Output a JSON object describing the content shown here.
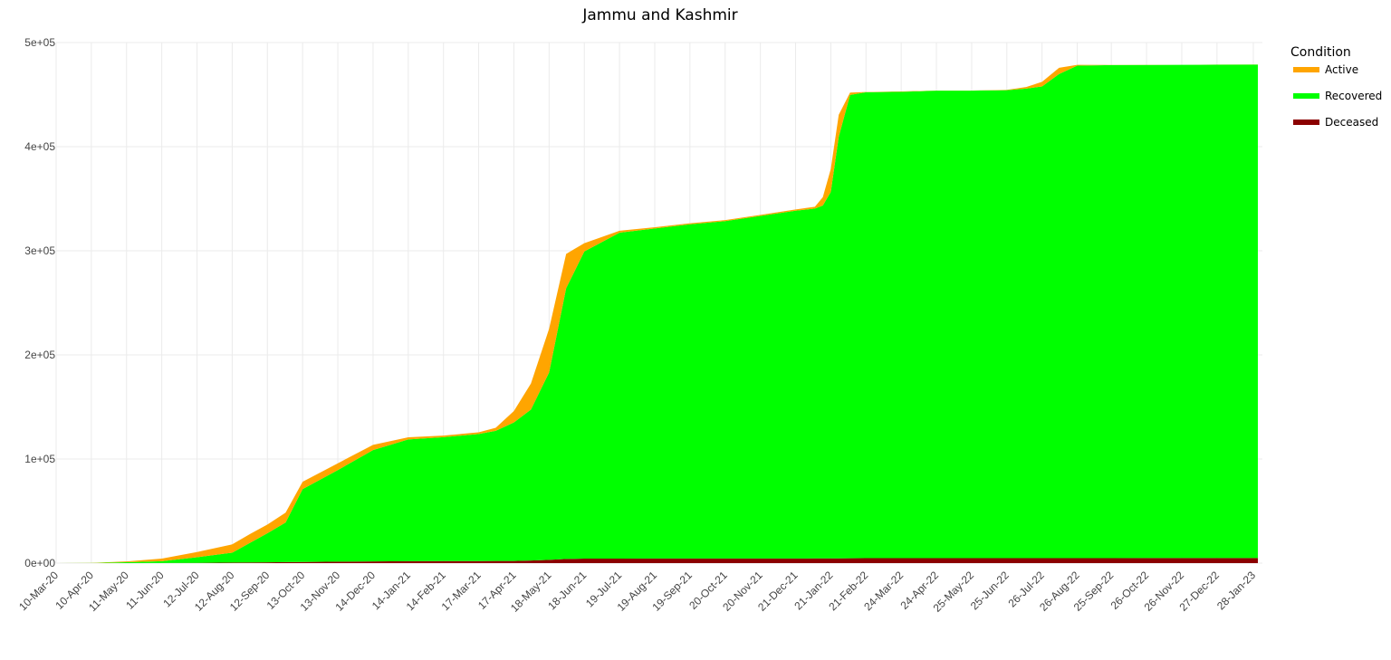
{
  "chart_data": {
    "type": "area",
    "stacked": true,
    "title": "Jammu and Kashmir",
    "xlabel": "",
    "ylabel": "",
    "x_axis_type": "date",
    "x_range": [
      "2020-03-10",
      "2023-02-05"
    ],
    "ylim": [
      0,
      500000
    ],
    "y_ticks": [
      0,
      100000,
      200000,
      300000,
      400000,
      500000
    ],
    "y_tick_labels": [
      "0e+00",
      "1e+05",
      "2e+05",
      "3e+05",
      "4e+05",
      "5e+05"
    ],
    "x_ticks": [
      "2020-03-10",
      "2020-04-10",
      "2020-05-11",
      "2020-06-11",
      "2020-07-12",
      "2020-08-12",
      "2020-09-12",
      "2020-10-13",
      "2020-11-13",
      "2020-12-14",
      "2021-01-14",
      "2021-02-14",
      "2021-03-17",
      "2021-04-17",
      "2021-05-18",
      "2021-06-18",
      "2021-07-19",
      "2021-08-19",
      "2021-09-19",
      "2021-10-20",
      "2021-11-20",
      "2021-12-21",
      "2022-01-21",
      "2022-02-21",
      "2022-03-24",
      "2022-04-24",
      "2022-05-25",
      "2022-06-25",
      "2022-07-26",
      "2022-08-26",
      "2022-09-25",
      "2022-10-26",
      "2022-11-26",
      "2022-12-27",
      "2023-01-28"
    ],
    "x_tick_labels": [
      "10-Mar-20",
      "10-Apr-20",
      "11-May-20",
      "11-Jun-20",
      "12-Jul-20",
      "12-Aug-20",
      "12-Sep-20",
      "13-Oct-20",
      "13-Nov-20",
      "14-Dec-20",
      "14-Jan-21",
      "14-Feb-21",
      "17-Mar-21",
      "17-Apr-21",
      "18-May-21",
      "18-Jun-21",
      "19-Jul-21",
      "19-Aug-21",
      "19-Sep-21",
      "20-Oct-21",
      "20-Nov-21",
      "21-Dec-21",
      "21-Jan-22",
      "21-Feb-22",
      "24-Mar-22",
      "24-Apr-22",
      "25-May-22",
      "25-Jun-22",
      "26-Jul-22",
      "26-Aug-22",
      "25-Sep-22",
      "26-Oct-22",
      "26-Nov-22",
      "27-Dec-22",
      "28-Jan-23"
    ],
    "grid": true,
    "legend": {
      "title": "Condition",
      "position": "right"
    },
    "x": [
      "2020-03-10",
      "2020-04-10",
      "2020-05-11",
      "2020-06-11",
      "2020-07-12",
      "2020-08-12",
      "2020-08-28",
      "2020-09-12",
      "2020-09-28",
      "2020-10-13",
      "2020-11-13",
      "2020-12-14",
      "2021-01-14",
      "2021-02-14",
      "2021-03-17",
      "2021-04-01",
      "2021-04-17",
      "2021-05-02",
      "2021-05-18",
      "2021-06-02",
      "2021-06-18",
      "2021-07-19",
      "2021-08-19",
      "2021-09-19",
      "2021-10-20",
      "2021-11-20",
      "2021-12-21",
      "2022-01-07",
      "2022-01-14",
      "2022-01-21",
      "2022-01-28",
      "2022-02-07",
      "2022-02-21",
      "2022-03-24",
      "2022-04-24",
      "2022-05-25",
      "2022-06-25",
      "2022-07-12",
      "2022-07-26",
      "2022-08-10",
      "2022-08-26",
      "2022-09-25",
      "2022-10-26",
      "2022-11-26",
      "2022-12-27",
      "2023-01-28",
      "2023-02-01"
    ],
    "series": [
      {
        "name": "Deceased",
        "color": "#8B0000",
        "values": [
          0,
          4,
          8,
          80,
          200,
          500,
          650,
          750,
          1000,
          1100,
          1400,
          1600,
          1850,
          1950,
          2000,
          2050,
          2100,
          2500,
          3100,
          4000,
          4300,
          4400,
          4420,
          4430,
          4440,
          4450,
          4490,
          4510,
          4530,
          4560,
          4600,
          4680,
          4740,
          4750,
          4755,
          4760,
          4770,
          4775,
          4780,
          4790,
          4805,
          4830,
          4840,
          4845,
          4850,
          4855,
          4855
        ]
      },
      {
        "name": "Recovered",
        "color": "#00FF00",
        "values": [
          0,
          100,
          900,
          1800,
          5500,
          9500,
          19000,
          28000,
          38000,
          70000,
          88000,
          107000,
          117000,
          119000,
          122000,
          125000,
          133000,
          145000,
          180000,
          260000,
          295000,
          313000,
          317000,
          321000,
          324000,
          329000,
          334000,
          336000,
          339000,
          352000,
          405000,
          445000,
          447500,
          448000,
          449000,
          449000,
          449500,
          451000,
          453000,
          465000,
          473000,
          473500,
          473600,
          473700,
          473850,
          474000,
          474000
        ]
      },
      {
        "name": "Active",
        "color": "#FFA500",
        "values": [
          0,
          150,
          700,
          2500,
          5000,
          8000,
          8500,
          8300,
          9500,
          7000,
          6500,
          5000,
          2000,
          1500,
          1700,
          3000,
          11000,
          25000,
          42000,
          33000,
          8000,
          1800,
          1200,
          1000,
          1000,
          1000,
          1200,
          1800,
          8000,
          22000,
          21000,
          2300,
          300,
          250,
          200,
          200,
          300,
          1500,
          4500,
          6000,
          800,
          150,
          100,
          90,
          80,
          80,
          80
        ]
      }
    ]
  }
}
